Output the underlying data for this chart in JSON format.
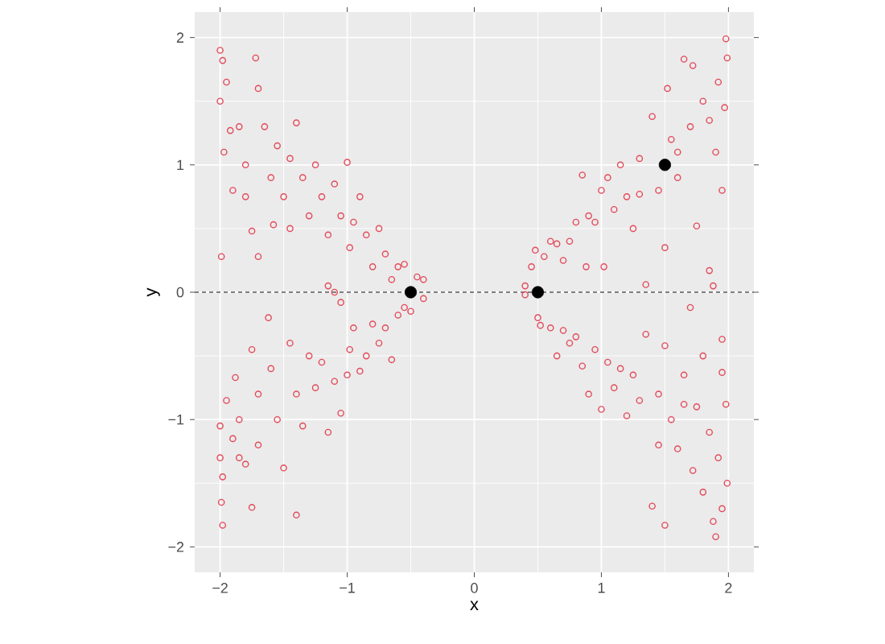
{
  "chart_data": {
    "type": "scatter",
    "xlabel": "x",
    "ylabel": "y",
    "xlim": [
      -2.2,
      2.2
    ],
    "ylim": [
      -2.2,
      2.2
    ],
    "xticks": [
      {
        "value": -2,
        "label": "−2"
      },
      {
        "value": -1,
        "label": "−1"
      },
      0,
      1,
      2
    ],
    "yticks": [
      {
        "value": -2,
        "label": "−2"
      },
      {
        "value": -1,
        "label": "−1"
      },
      0,
      1,
      2
    ],
    "grid": true,
    "marker": "circle",
    "ref_lines": [
      {
        "axis": "y",
        "value": 0,
        "color": "#000000",
        "line_style": "dashed"
      }
    ],
    "series": [
      {
        "color": "#e34a5a",
        "x": [
          -2,
          -1.98,
          -2,
          -1.95,
          -1.92,
          -1.97,
          -1.99,
          -1.9,
          -1.85,
          -1.8,
          -1.72,
          -1.7,
          -1.75,
          -1.7,
          -1.65,
          -1.6,
          -1.55,
          -1.5,
          -1.45,
          -1.4,
          -1.35,
          -1.3,
          -1.25,
          -1.2,
          -1.15,
          -1.1,
          -1.05,
          -1.0,
          -0.98,
          -0.95,
          -0.9,
          -0.85,
          -0.8,
          -0.75,
          -0.7,
          -0.65,
          -0.6,
          -0.55,
          -0.45,
          -0.4,
          -1.15,
          -1.1,
          -1.05,
          -1.45,
          -1.8,
          -1.58,
          -2,
          -1.99,
          -1.98,
          -2,
          -1.95,
          -1.9,
          -1.88,
          -1.85,
          -1.8,
          -1.75,
          -1.75,
          -1.7,
          -1.7,
          -1.62,
          -1.6,
          -1.55,
          -1.5,
          -1.45,
          -1.4,
          -1.4,
          -1.35,
          -1.3,
          -1.25,
          -1.2,
          -1.15,
          -1.1,
          -1.05,
          -1.0,
          -0.98,
          -0.95,
          -0.9,
          -0.85,
          -0.8,
          -0.75,
          -0.7,
          -0.65,
          -0.6,
          -0.55,
          -0.5,
          -0.4,
          -1.98,
          -1.85,
          0.4,
          0.45,
          0.48,
          0.55,
          0.6,
          0.65,
          0.7,
          0.75,
          0.8,
          0.85,
          0.88,
          0.9,
          0.95,
          1.0,
          1.02,
          1.05,
          1.1,
          1.15,
          1.2,
          1.25,
          1.3,
          1.35,
          1.4,
          1.45,
          1.5,
          1.52,
          1.55,
          1.6,
          1.65,
          1.7,
          1.72,
          1.75,
          1.8,
          1.85,
          1.88,
          1.9,
          1.92,
          1.95,
          1.98,
          1.99,
          1.97,
          1.3,
          1.6,
          1.85,
          0.4,
          0.5,
          0.52,
          0.6,
          0.65,
          0.7,
          0.75,
          0.8,
          0.85,
          0.9,
          0.95,
          1.0,
          1.05,
          1.1,
          1.15,
          1.2,
          1.25,
          1.3,
          1.35,
          1.4,
          1.45,
          1.5,
          1.5,
          1.55,
          1.6,
          1.65,
          1.7,
          1.72,
          1.75,
          1.8,
          1.8,
          1.85,
          1.9,
          1.88,
          1.92,
          1.95,
          1.95,
          1.98,
          1.99,
          1.95,
          1.45,
          1.65
        ],
        "values": [
          1.9,
          1.82,
          1.5,
          1.65,
          1.27,
          1.1,
          0.28,
          0.8,
          1.3,
          1.0,
          1.84,
          1.6,
          0.48,
          0.28,
          1.3,
          0.9,
          1.15,
          0.75,
          1.05,
          1.33,
          0.9,
          0.6,
          1.0,
          0.75,
          0.45,
          0.85,
          0.6,
          1.02,
          0.35,
          0.55,
          0.75,
          0.45,
          0.2,
          0.5,
          0.3,
          0.1,
          0.2,
          0.22,
          0.12,
          0.1,
          0.05,
          0.0,
          -0.08,
          0.5,
          0.75,
          0.53,
          -1.3,
          -1.65,
          -1.83,
          -1.05,
          -0.85,
          -1.15,
          -0.67,
          -1.0,
          -1.35,
          -0.45,
          -1.69,
          -1.2,
          -0.8,
          -0.2,
          -0.6,
          -1.0,
          -1.38,
          -0.4,
          -1.75,
          -0.8,
          -1.05,
          -0.5,
          -0.75,
          -0.55,
          -1.1,
          -0.7,
          -0.95,
          -0.65,
          -0.45,
          -0.28,
          -0.62,
          -0.5,
          -0.25,
          -0.4,
          -0.28,
          -0.53,
          -0.18,
          -0.12,
          -0.15,
          -0.05,
          -1.45,
          -1.3,
          0.05,
          0.2,
          0.33,
          0.28,
          0.4,
          0.38,
          0.25,
          0.4,
          0.55,
          0.92,
          0.2,
          0.6,
          0.55,
          0.8,
          0.2,
          0.9,
          0.65,
          1.0,
          0.75,
          0.5,
          1.05,
          0.06,
          1.38,
          0.8,
          0.35,
          1.6,
          1.2,
          0.9,
          1.83,
          1.3,
          1.78,
          0.52,
          1.5,
          0.17,
          0.05,
          1.1,
          1.65,
          0.8,
          1.99,
          1.84,
          1.45,
          0.77,
          1.1,
          1.35,
          -0.02,
          -0.2,
          -0.26,
          -0.28,
          -0.5,
          -0.3,
          -0.4,
          -0.35,
          -0.58,
          -0.8,
          -0.45,
          -0.92,
          -0.55,
          -0.75,
          -0.6,
          -0.97,
          -0.65,
          -0.85,
          -0.33,
          -1.68,
          -0.8,
          -1.83,
          -0.42,
          -1.0,
          -1.23,
          -0.65,
          -0.12,
          -1.4,
          -0.9,
          -1.57,
          -0.5,
          -1.1,
          -1.92,
          -1.8,
          -1.3,
          -0.37,
          -1.7,
          -0.88,
          -1.5,
          -0.63,
          -1.2,
          -0.88
        ]
      },
      {
        "color": "#000000",
        "x": [
          -0.5,
          0.5,
          1.5
        ],
        "values": [
          0,
          0,
          1
        ]
      }
    ]
  }
}
